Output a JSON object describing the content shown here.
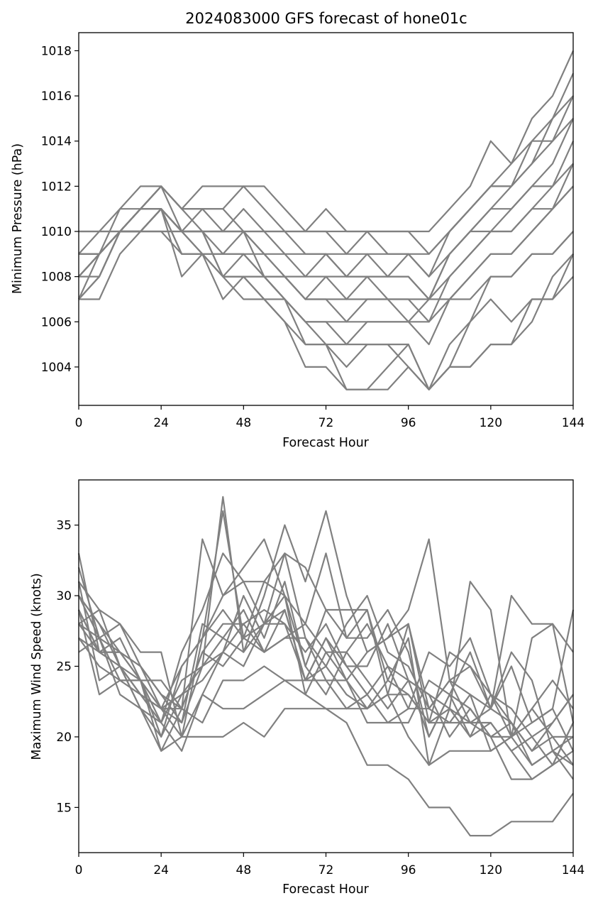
{
  "line_color": "#808080",
  "chart_data": [
    {
      "type": "line",
      "title": "2024083000 GFS forecast of hone01c",
      "xlabel": "Forecast Hour",
      "ylabel": "Minimum Pressure (hPa)",
      "xlim": [
        0,
        144
      ],
      "ylim": [
        1002.3,
        1018.8
      ],
      "xticks": [
        "0",
        "24",
        "48",
        "72",
        "96",
        "120",
        "144"
      ],
      "yticks": [
        "1004",
        "1006",
        "1008",
        "1010",
        "1012",
        "1014",
        "1016",
        "1018"
      ],
      "x": [
        0,
        6,
        12,
        18,
        24,
        30,
        36,
        42,
        48,
        54,
        60,
        66,
        72,
        78,
        84,
        90,
        96,
        102,
        108,
        114,
        120,
        126,
        132,
        138,
        144
      ],
      "series": [
        {
          "values": [
            1010,
            1010,
            1010,
            1010,
            1010,
            1010,
            1010,
            1010,
            1010,
            1010,
            1010,
            1010,
            1010,
            1010,
            1010,
            1010,
            1010,
            1010,
            1011,
            1012,
            1014,
            1013,
            1015,
            1016,
            1018
          ]
        },
        {
          "values": [
            1009,
            1010,
            1011,
            1012,
            1012,
            1011,
            1012,
            1012,
            1012,
            1012,
            1011,
            1010,
            1011,
            1010,
            1010,
            1010,
            1010,
            1009,
            1010,
            1011,
            1012,
            1013,
            1014,
            1015,
            1017
          ]
        },
        {
          "values": [
            1009,
            1009,
            1010,
            1011,
            1012,
            1011,
            1011,
            1011,
            1012,
            1011,
            1010,
            1010,
            1010,
            1009,
            1010,
            1009,
            1009,
            1009,
            1010,
            1011,
            1012,
            1012,
            1013,
            1015,
            1016
          ]
        },
        {
          "values": [
            1008,
            1009,
            1010,
            1011,
            1012,
            1011,
            1011,
            1010,
            1011,
            1010,
            1010,
            1009,
            1009,
            1009,
            1009,
            1008,
            1009,
            1008,
            1010,
            1011,
            1012,
            1012,
            1014,
            1014,
            1016
          ]
        },
        {
          "values": [
            1008,
            1009,
            1011,
            1011,
            1011,
            1010,
            1011,
            1011,
            1010,
            1010,
            1009,
            1009,
            1009,
            1008,
            1009,
            1009,
            1009,
            1008,
            1009,
            1010,
            1011,
            1012,
            1013,
            1014,
            1015
          ]
        },
        {
          "values": [
            1007,
            1009,
            1010,
            1011,
            1011,
            1010,
            1010,
            1010,
            1010,
            1009,
            1009,
            1008,
            1009,
            1008,
            1008,
            1008,
            1008,
            1007,
            1009,
            1010,
            1011,
            1011,
            1012,
            1013,
            1015
          ]
        },
        {
          "values": [
            1007,
            1008,
            1010,
            1011,
            1012,
            1010,
            1010,
            1009,
            1010,
            1009,
            1008,
            1008,
            1008,
            1008,
            1008,
            1008,
            1008,
            1007,
            1009,
            1010,
            1010,
            1011,
            1012,
            1012,
            1014
          ]
        },
        {
          "values": [
            1008,
            1008,
            1010,
            1010,
            1011,
            1010,
            1009,
            1009,
            1009,
            1009,
            1008,
            1007,
            1008,
            1007,
            1008,
            1007,
            1007,
            1007,
            1008,
            1009,
            1010,
            1010,
            1011,
            1011,
            1013
          ]
        },
        {
          "values": [
            1009,
            1009,
            1010,
            1010,
            1011,
            1009,
            1009,
            1009,
            1009,
            1008,
            1008,
            1007,
            1007,
            1007,
            1007,
            1007,
            1007,
            1006,
            1008,
            1009,
            1010,
            1010,
            1011,
            1012,
            1013
          ]
        },
        {
          "values": [
            1007,
            1007,
            1009,
            1010,
            1011,
            1010,
            1009,
            1008,
            1008,
            1008,
            1008,
            1007,
            1007,
            1006,
            1007,
            1007,
            1006,
            1006,
            1007,
            1008,
            1009,
            1009,
            1010,
            1011,
            1012
          ]
        },
        {
          "values": [
            1009,
            1009,
            1010,
            1011,
            1012,
            1011,
            1010,
            1008,
            1009,
            1008,
            1007,
            1006,
            1006,
            1006,
            1006,
            1006,
            1006,
            1005,
            1007,
            1008,
            1009,
            1009,
            1010,
            1011,
            1012
          ]
        },
        {
          "values": [
            1010,
            1010,
            1010,
            1010,
            1010,
            1010,
            1010,
            1008,
            1008,
            1008,
            1007,
            1006,
            1006,
            1005,
            1006,
            1006,
            1006,
            1007,
            1007,
            1007,
            1008,
            1008,
            1009,
            1009,
            1010
          ]
        },
        {
          "values": [
            1008,
            1009,
            1010,
            1010,
            1011,
            1008,
            1009,
            1007,
            1008,
            1007,
            1007,
            1005,
            1005,
            1005,
            1005,
            1005,
            1005,
            1003,
            1005,
            1006,
            1008,
            1008,
            1009,
            1009,
            1010
          ]
        },
        {
          "values": [
            1007,
            1008,
            1010,
            1010,
            1011,
            1009,
            1009,
            1008,
            1008,
            1007,
            1006,
            1005,
            1005,
            1004,
            1005,
            1005,
            1004,
            1003,
            1004,
            1004,
            1005,
            1005,
            1007,
            1007,
            1009
          ]
        },
        {
          "values": [
            1008,
            1009,
            1010,
            1010,
            1010,
            1009,
            1009,
            1008,
            1007,
            1007,
            1006,
            1004,
            1004,
            1003,
            1003,
            1003,
            1004,
            1003,
            1004,
            1004,
            1005,
            1005,
            1006,
            1008,
            1009
          ]
        },
        {
          "values": [
            1009,
            1009,
            1010,
            1011,
            1011,
            1010,
            1010,
            1010,
            1010,
            1008,
            1007,
            1006,
            1005,
            1003,
            1003,
            1004,
            1005,
            1003,
            1004,
            1006,
            1007,
            1006,
            1007,
            1007,
            1008
          ]
        }
      ]
    },
    {
      "type": "line",
      "title": "",
      "xlabel": "Forecast Hour",
      "ylabel": "Maximum Wind Speed (knots)",
      "xlim": [
        0,
        144
      ],
      "ylim": [
        11.8,
        38.2
      ],
      "xticks": [
        "0",
        "24",
        "48",
        "72",
        "96",
        "120",
        "144"
      ],
      "yticks": [
        "15",
        "20",
        "25",
        "30",
        "35"
      ],
      "x": [
        0,
        6,
        12,
        18,
        24,
        30,
        36,
        42,
        48,
        54,
        60,
        66,
        72,
        78,
        84,
        90,
        96,
        102,
        108,
        114,
        120,
        126,
        132,
        138,
        144
      ],
      "series": [
        {
          "values": [
            33,
            26,
            26,
            24,
            22,
            21,
            25,
            37,
            26,
            30,
            35,
            31,
            36,
            30,
            26,
            27,
            29,
            34,
            24,
            23,
            22,
            21,
            19,
            21,
            23
          ]
        },
        {
          "values": [
            31,
            29,
            28,
            25,
            23,
            22,
            34,
            30,
            32,
            34,
            30,
            28,
            33,
            27,
            29,
            24,
            27,
            18,
            22,
            31,
            29,
            20,
            27,
            28,
            21
          ]
        },
        {
          "values": [
            30,
            27,
            28,
            26,
            26,
            20,
            27,
            36,
            27,
            31,
            33,
            27,
            25,
            28,
            30,
            26,
            25,
            22,
            24,
            21,
            22,
            30,
            28,
            28,
            26
          ]
        },
        {
          "values": [
            29,
            26,
            27,
            24,
            21,
            26,
            29,
            33,
            31,
            28,
            33,
            32,
            29,
            27,
            27,
            29,
            26,
            20,
            23,
            26,
            22,
            25,
            21,
            22,
            29
          ]
        },
        {
          "values": [
            28,
            29,
            25,
            24,
            20,
            25,
            27,
            30,
            31,
            31,
            30,
            25,
            29,
            29,
            29,
            23,
            28,
            21,
            26,
            25,
            23,
            21,
            18,
            19,
            20
          ]
        },
        {
          "values": [
            32,
            27,
            26,
            25,
            23,
            21,
            28,
            27,
            29,
            26,
            29,
            24,
            27,
            24,
            26,
            27,
            28,
            22,
            24,
            25,
            22,
            26,
            24,
            19,
            18
          ]
        },
        {
          "values": [
            30,
            28,
            25,
            23,
            22,
            23,
            25,
            26,
            30,
            27,
            31,
            25,
            23,
            26,
            28,
            25,
            22,
            26,
            25,
            27,
            23,
            20,
            22,
            24,
            22
          ]
        },
        {
          "values": [
            29,
            23,
            24,
            24,
            24,
            22,
            26,
            28,
            28,
            29,
            28,
            26,
            28,
            25,
            25,
            28,
            24,
            23,
            22,
            20,
            23,
            22,
            20,
            21,
            23
          ]
        },
        {
          "values": [
            28,
            26,
            25,
            23,
            22,
            25,
            27,
            29,
            27,
            28,
            30,
            23,
            26,
            26,
            24,
            22,
            24,
            20,
            23,
            22,
            20,
            21,
            19,
            20,
            20
          ]
        },
        {
          "values": [
            27,
            25,
            24,
            23,
            21,
            24,
            25,
            27,
            26,
            28,
            29,
            24,
            25,
            23,
            22,
            24,
            23,
            21,
            22,
            21,
            21,
            19,
            20,
            18,
            21
          ]
        },
        {
          "values": [
            31,
            24,
            25,
            22,
            20,
            23,
            24,
            26,
            28,
            26,
            27,
            27,
            24,
            22,
            23,
            21,
            22,
            22,
            21,
            23,
            19,
            20,
            21,
            22,
            19
          ]
        },
        {
          "values": [
            26,
            27,
            24,
            24,
            22,
            22,
            26,
            25,
            27,
            26,
            27,
            28,
            26,
            24,
            21,
            21,
            21,
            24,
            23,
            20,
            21,
            19,
            17,
            18,
            19
          ]
        },
        {
          "values": [
            30,
            28,
            26,
            25,
            22,
            20,
            23,
            26,
            25,
            28,
            28,
            24,
            27,
            25,
            23,
            25,
            24,
            23,
            20,
            22,
            20,
            20,
            22,
            20,
            18
          ]
        },
        {
          "values": [
            28,
            27,
            23,
            22,
            19,
            22,
            21,
            24,
            24,
            25,
            24,
            24,
            24,
            24,
            22,
            23,
            23,
            21,
            21,
            21,
            20,
            17,
            17,
            18,
            21
          ]
        },
        {
          "values": [
            27,
            26,
            26,
            24,
            19,
            20,
            20,
            20,
            21,
            20,
            22,
            22,
            22,
            21,
            18,
            18,
            17,
            15,
            15,
            13,
            13,
            14,
            14,
            14,
            16
          ]
        },
        {
          "values": [
            29,
            26,
            25,
            22,
            21,
            19,
            23,
            22,
            22,
            23,
            24,
            23,
            22,
            22,
            22,
            23,
            20,
            18,
            19,
            19,
            19,
            20,
            18,
            19,
            17
          ]
        }
      ]
    }
  ]
}
